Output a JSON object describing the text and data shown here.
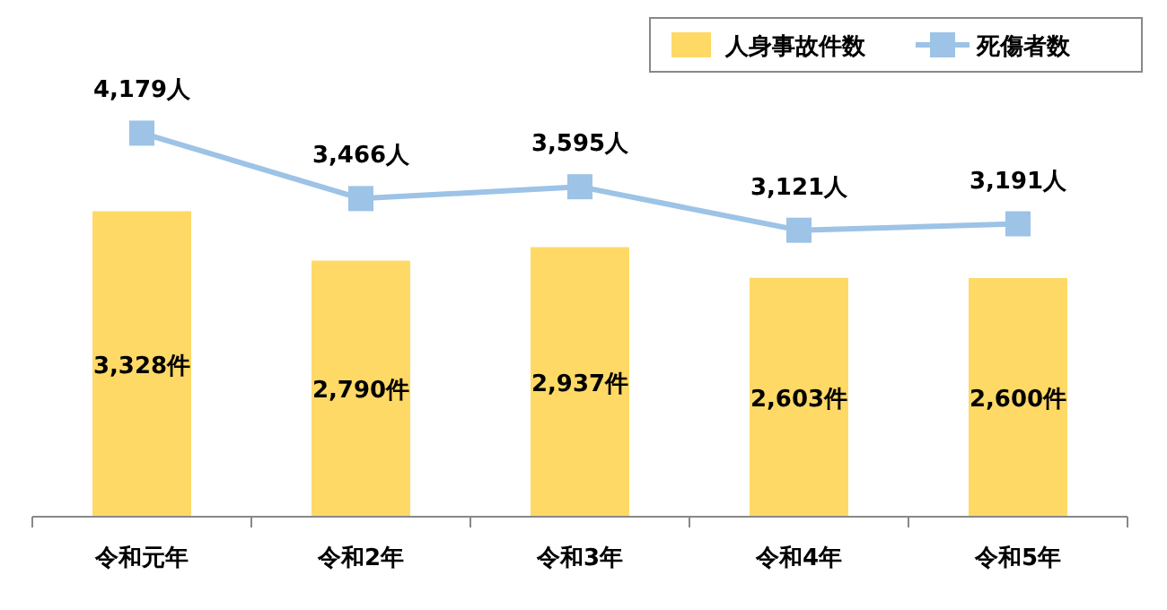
{
  "chart_data": {
    "type": "bar",
    "categories": [
      "令和元年",
      "令和2年",
      "令和3年",
      "令和4年",
      "令和5年"
    ],
    "series": [
      {
        "name": "人身事故件数",
        "color": "#ffd966",
        "values": [
          3328,
          2790,
          2937,
          2603,
          2600
        ],
        "value_labels": [
          "3,328件",
          "2,790件",
          "2,937件",
          "2,603件",
          "2,600件"
        ]
      },
      {
        "name": "死傷者数",
        "type": "line",
        "color": "#9dc3e6",
        "marker": "square",
        "values": [
          4179,
          3466,
          3595,
          3121,
          3191
        ],
        "value_labels": [
          "4,179人",
          "3,466人",
          "3,595人",
          "3,121人",
          "3,191人"
        ]
      }
    ],
    "legend": "top right"
  }
}
